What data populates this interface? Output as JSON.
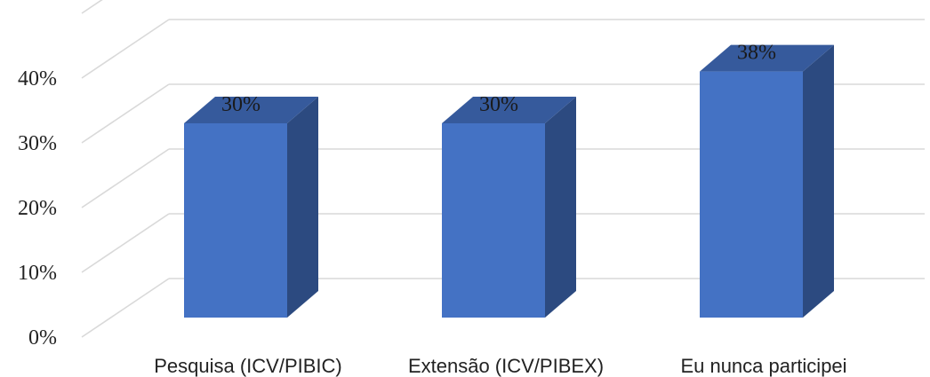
{
  "chart_data": {
    "type": "bar",
    "three_d": true,
    "categories": [
      "Pesquisa (ICV/PIBIC)",
      "Extensão (ICV/PIBEX)",
      "Eu nunca participei"
    ],
    "values": [
      30,
      30,
      38
    ],
    "data_labels": [
      "30%",
      "30%",
      "38%"
    ],
    "y_ticks": [
      0,
      10,
      20,
      30,
      40,
      50
    ],
    "y_tick_labels": [
      "0%",
      "10%",
      "20%",
      "30%",
      "40%",
      ""
    ],
    "ylim": [
      0,
      50
    ],
    "grid": true,
    "legend": "none",
    "colors": {
      "bar_front": "#4472C4",
      "bar_side": "#2C4A80",
      "bar_top": "#365A9C",
      "grid": "#D9D9D9"
    }
  }
}
